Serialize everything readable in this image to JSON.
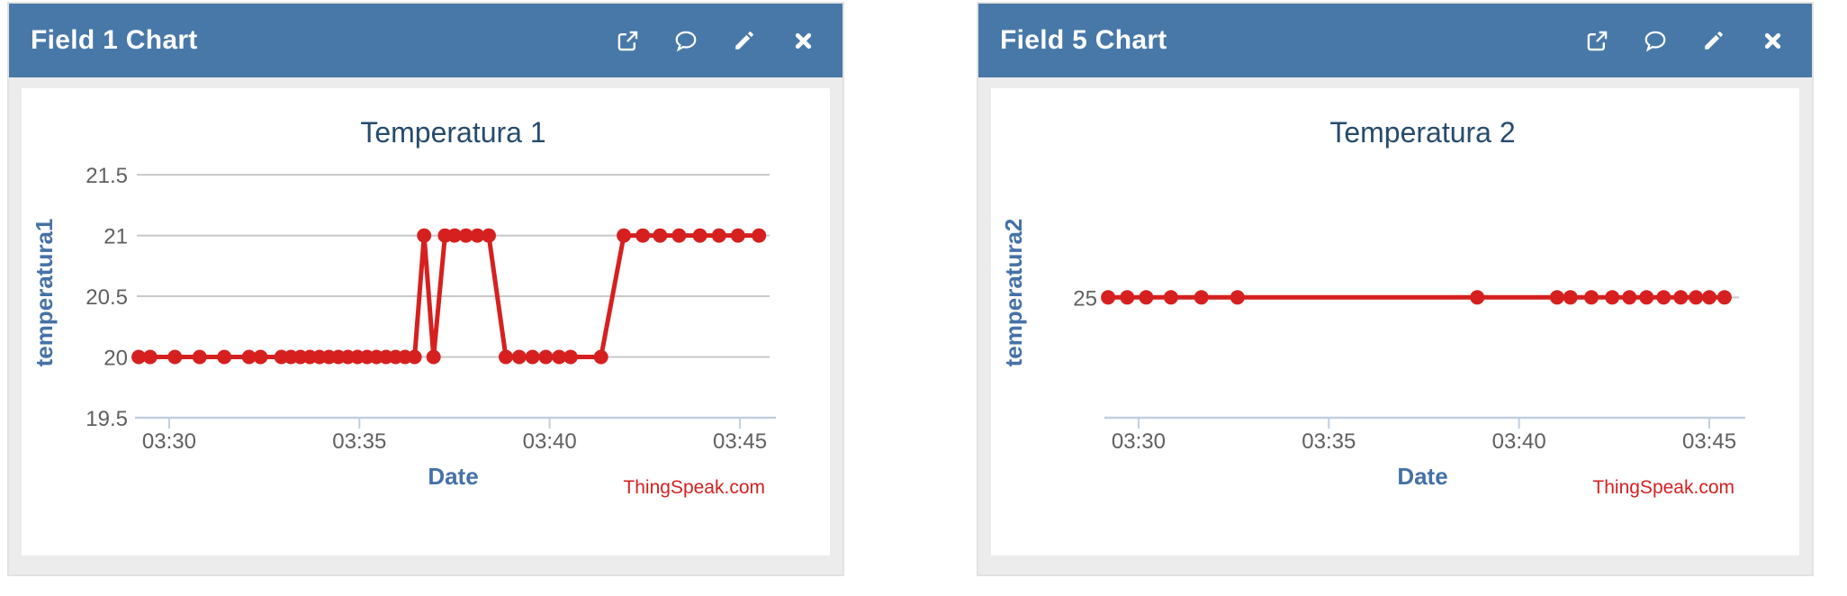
{
  "page": {
    "background": "#ffffff"
  },
  "theme": {
    "header_bg": "#4878a8",
    "header_text": "#ffffff",
    "card_bg": "#ececec",
    "card_border": "#e2e2e2",
    "chart_bg": "#ffffff",
    "title_color": "#274b6d",
    "axis_title_color": "#4572a7",
    "tick_label_color": "#606060",
    "grid_color": "#c8c8c8",
    "axis_line_color": "#c0d0e0",
    "line_color": "#d62020",
    "credits_color": "#d62020"
  },
  "panels": [
    {
      "header": {
        "title": "Field 1 Chart",
        "icons": [
          {
            "name": "external-link-icon"
          },
          {
            "name": "comment-icon"
          },
          {
            "name": "edit-icon"
          },
          {
            "name": "close-icon"
          }
        ]
      },
      "chart_index": 0
    },
    {
      "header": {
        "title": "Field 5 Chart",
        "icons": [
          {
            "name": "external-link-icon"
          },
          {
            "name": "comment-icon"
          },
          {
            "name": "edit-icon"
          },
          {
            "name": "close-icon"
          }
        ]
      },
      "chart_index": 1
    }
  ],
  "chart_data": [
    {
      "type": "line",
      "title": "Temperatura 1",
      "xlabel": "Date",
      "ylabel": "temperatura1",
      "credits": "ThingSpeak.com",
      "x_unit": "minutes after 03:00",
      "xlim": [
        29.15,
        45.78
      ],
      "ylim": [
        19.5,
        21.56
      ],
      "x_ticks": [
        {
          "t": 30,
          "label": "03:30"
        },
        {
          "t": 35,
          "label": "03:35"
        },
        {
          "t": 40,
          "label": "03:40"
        },
        {
          "t": 45,
          "label": "03:45"
        }
      ],
      "y_ticks": [
        {
          "v": 19.5,
          "label": "19.5"
        },
        {
          "v": 20,
          "label": "20"
        },
        {
          "v": 20.5,
          "label": "20.5"
        },
        {
          "v": 21,
          "label": "21"
        },
        {
          "v": 21.5,
          "label": "21.5"
        }
      ],
      "grid": true,
      "legend": false,
      "series": [
        {
          "name": "temperatura1",
          "color": "#d62020",
          "points": [
            [
              29.2,
              20
            ],
            [
              29.5,
              20
            ],
            [
              30.15,
              20
            ],
            [
              30.8,
              20
            ],
            [
              31.45,
              20
            ],
            [
              32.1,
              20
            ],
            [
              32.4,
              20
            ],
            [
              32.95,
              20
            ],
            [
              33.2,
              20
            ],
            [
              33.45,
              20
            ],
            [
              33.7,
              20
            ],
            [
              33.95,
              20
            ],
            [
              34.2,
              20
            ],
            [
              34.45,
              20
            ],
            [
              34.7,
              20
            ],
            [
              34.95,
              20
            ],
            [
              35.2,
              20
            ],
            [
              35.45,
              20
            ],
            [
              35.7,
              20
            ],
            [
              35.95,
              20
            ],
            [
              36.2,
              20
            ],
            [
              36.45,
              20
            ],
            [
              36.7,
              21
            ],
            [
              36.95,
              20
            ],
            [
              37.25,
              21
            ],
            [
              37.5,
              21
            ],
            [
              37.8,
              21
            ],
            [
              38.1,
              21
            ],
            [
              38.4,
              21
            ],
            [
              38.85,
              20
            ],
            [
              39.2,
              20
            ],
            [
              39.55,
              20
            ],
            [
              39.9,
              20
            ],
            [
              40.25,
              20
            ],
            [
              40.55,
              20
            ],
            [
              41.35,
              20
            ],
            [
              41.95,
              21
            ],
            [
              42.45,
              21
            ],
            [
              42.9,
              21
            ],
            [
              43.4,
              21
            ],
            [
              43.95,
              21
            ],
            [
              44.45,
              21
            ],
            [
              44.95,
              21
            ],
            [
              45.5,
              21
            ]
          ]
        }
      ]
    },
    {
      "type": "line",
      "title": "Temperatura 2",
      "xlabel": "Date",
      "ylabel": "temperatura2",
      "credits": "ThingSpeak.com",
      "x_unit": "minutes after 03:00",
      "xlim": [
        29.15,
        45.78
      ],
      "ylim": [
        24.0,
        26.08
      ],
      "x_ticks": [
        {
          "t": 30,
          "label": "03:30"
        },
        {
          "t": 35,
          "label": "03:35"
        },
        {
          "t": 40,
          "label": "03:40"
        },
        {
          "t": 45,
          "label": "03:45"
        }
      ],
      "y_ticks": [
        {
          "v": 25,
          "label": "25"
        }
      ],
      "grid": true,
      "legend": false,
      "series": [
        {
          "name": "temperatura2",
          "color": "#d62020",
          "points": [
            [
              29.2,
              25
            ],
            [
              29.7,
              25
            ],
            [
              30.2,
              25
            ],
            [
              30.85,
              25
            ],
            [
              31.65,
              25
            ],
            [
              32.6,
              25
            ],
            [
              38.9,
              25
            ],
            [
              41.0,
              25
            ],
            [
              41.35,
              25
            ],
            [
              41.9,
              25
            ],
            [
              42.45,
              25
            ],
            [
              42.9,
              25
            ],
            [
              43.35,
              25
            ],
            [
              43.8,
              25
            ],
            [
              44.25,
              25
            ],
            [
              44.65,
              25
            ],
            [
              45.0,
              25
            ],
            [
              45.4,
              25
            ]
          ]
        }
      ]
    }
  ]
}
